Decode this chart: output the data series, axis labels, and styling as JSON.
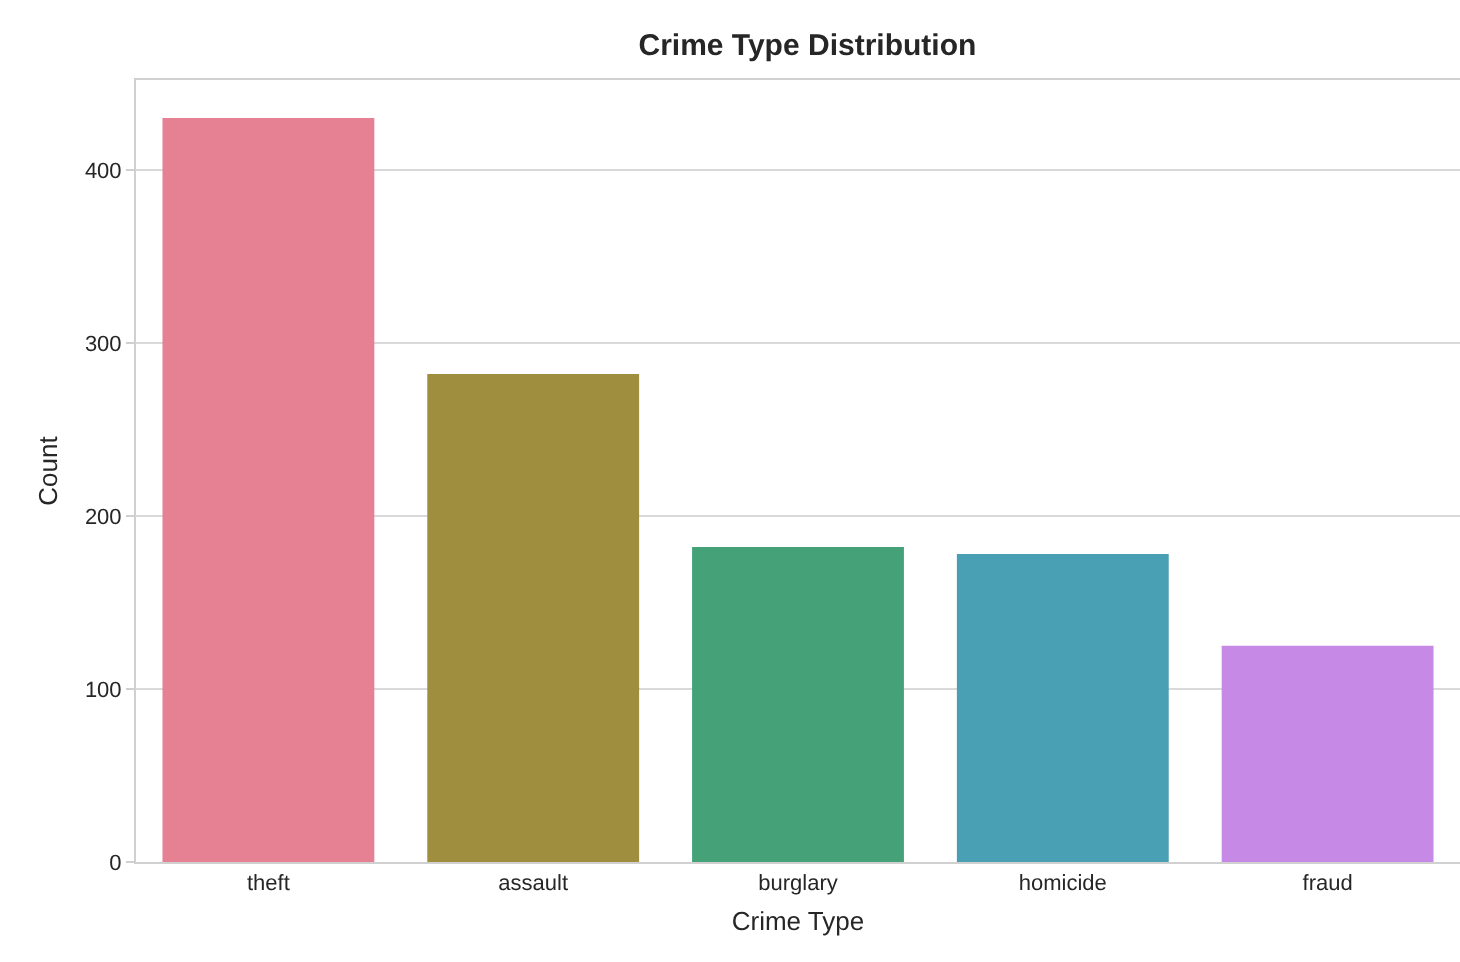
{
  "chart_data": {
    "type": "bar",
    "title": "Crime Type Distribution",
    "xlabel": "Crime Type",
    "ylabel": "Count",
    "categories": [
      "theft",
      "assault",
      "burglary",
      "homicide",
      "fraud"
    ],
    "values": [
      430,
      282,
      182,
      178,
      125
    ],
    "colors": [
      "#e68193",
      "#a08e3f",
      "#44a178",
      "#499fb4",
      "#c689e5"
    ],
    "ylim": [
      0,
      452
    ],
    "yticks": [
      0,
      100,
      200,
      300,
      400
    ],
    "grid": "y"
  }
}
